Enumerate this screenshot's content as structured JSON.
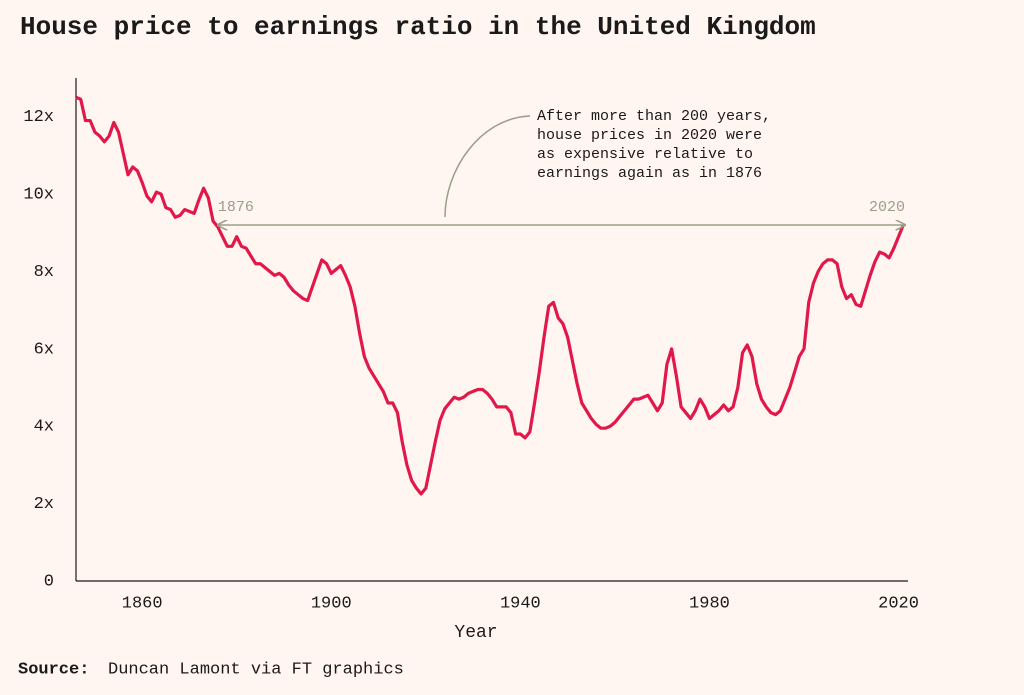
{
  "chart_data": {
    "type": "line",
    "title": "House price to earnings ratio in the United Kingdom",
    "x_label": "Year",
    "source_label": "Source:",
    "source": "Duncan Lamont via FT graphics",
    "annotation": {
      "lines": [
        "After more than 200 years,",
        "house prices in 2020 were",
        "as expensive relative to",
        "earnings again as in 1876"
      ],
      "start_label": "1876",
      "end_label": "2020"
    },
    "xlim": [
      1846,
      2022
    ],
    "xticks": [
      1860,
      1900,
      1940,
      1980,
      2020
    ],
    "ylim": [
      0,
      13
    ],
    "yticks": [
      {
        "value": 0,
        "label": "0"
      },
      {
        "value": 2,
        "label": "2x"
      },
      {
        "value": 4,
        "label": "4x"
      },
      {
        "value": 6,
        "label": "6x"
      },
      {
        "value": 8,
        "label": "8x"
      },
      {
        "value": 10,
        "label": "10x"
      },
      {
        "value": 12,
        "label": "12x"
      }
    ],
    "grid": false,
    "x": [
      1846,
      1847,
      1848,
      1849,
      1850,
      1851,
      1852,
      1853,
      1854,
      1855,
      1856,
      1857,
      1858,
      1859,
      1860,
      1861,
      1862,
      1863,
      1864,
      1865,
      1866,
      1867,
      1868,
      1869,
      1870,
      1871,
      1872,
      1873,
      1874,
      1875,
      1876,
      1877,
      1878,
      1879,
      1880,
      1881,
      1882,
      1883,
      1884,
      1885,
      1886,
      1887,
      1888,
      1889,
      1890,
      1891,
      1892,
      1893,
      1894,
      1895,
      1896,
      1897,
      1898,
      1899,
      1900,
      1901,
      1902,
      1903,
      1904,
      1905,
      1906,
      1907,
      1908,
      1909,
      1910,
      1911,
      1912,
      1913,
      1914,
      1915,
      1916,
      1917,
      1918,
      1919,
      1920,
      1921,
      1922,
      1923,
      1924,
      1925,
      1926,
      1927,
      1928,
      1929,
      1930,
      1931,
      1932,
      1933,
      1934,
      1935,
      1936,
      1937,
      1938,
      1939,
      1940,
      1941,
      1942,
      1943,
      1944,
      1945,
      1946,
      1947,
      1948,
      1949,
      1950,
      1951,
      1952,
      1953,
      1954,
      1955,
      1956,
      1957,
      1958,
      1959,
      1960,
      1961,
      1962,
      1963,
      1964,
      1965,
      1966,
      1967,
      1968,
      1969,
      1970,
      1971,
      1972,
      1973,
      1974,
      1975,
      1976,
      1977,
      1978,
      1979,
      1980,
      1981,
      1982,
      1983,
      1984,
      1985,
      1986,
      1987,
      1988,
      1989,
      1990,
      1991,
      1992,
      1993,
      1994,
      1995,
      1996,
      1997,
      1998,
      1999,
      2000,
      2001,
      2002,
      2003,
      2004,
      2005,
      2006,
      2007,
      2008,
      2009,
      2010,
      2011,
      2012,
      2013,
      2014,
      2015,
      2016,
      2017,
      2018,
      2019,
      2020,
      2021
    ],
    "series": [
      {
        "name": "House price to earnings ratio",
        "color": "#e0194a",
        "values": [
          12.5,
          12.45,
          11.9,
          11.9,
          11.6,
          11.5,
          11.35,
          11.5,
          11.85,
          11.6,
          11.05,
          10.5,
          10.7,
          10.6,
          10.3,
          9.95,
          9.8,
          10.05,
          10.0,
          9.65,
          9.6,
          9.4,
          9.45,
          9.6,
          9.55,
          9.5,
          9.85,
          10.15,
          9.9,
          9.3,
          9.15,
          8.9,
          8.65,
          8.65,
          8.9,
          8.65,
          8.6,
          8.4,
          8.2,
          8.2,
          8.1,
          8.0,
          7.9,
          7.95,
          7.85,
          7.65,
          7.5,
          7.4,
          7.3,
          7.25,
          7.6,
          7.95,
          8.3,
          8.2,
          7.95,
          8.05,
          8.15,
          7.9,
          7.6,
          7.1,
          6.4,
          5.8,
          5.5,
          5.3,
          5.1,
          4.9,
          4.6,
          4.6,
          4.35,
          3.6,
          3.0,
          2.6,
          2.4,
          2.25,
          2.4,
          3.0,
          3.6,
          4.15,
          4.45,
          4.6,
          4.75,
          4.7,
          4.75,
          4.85,
          4.9,
          4.95,
          4.95,
          4.85,
          4.7,
          4.5,
          4.5,
          4.5,
          4.35,
          3.8,
          3.8,
          3.7,
          3.85,
          4.6,
          5.4,
          6.3,
          7.1,
          7.2,
          6.8,
          6.65,
          6.3,
          5.7,
          5.1,
          4.6,
          4.4,
          4.2,
          4.05,
          3.95,
          3.95,
          4.0,
          4.1,
          4.25,
          4.4,
          4.55,
          4.7,
          4.7,
          4.75,
          4.8,
          4.6,
          4.4,
          4.6,
          5.6,
          6.0,
          5.3,
          4.5,
          4.35,
          4.2,
          4.4,
          4.7,
          4.5,
          4.2,
          4.3,
          4.4,
          4.55,
          4.4,
          4.5,
          5.0,
          5.9,
          6.1,
          5.8,
          5.1,
          4.7,
          4.5,
          4.35,
          4.3,
          4.4,
          4.7,
          5.0,
          5.4,
          5.8,
          6.0,
          7.2,
          7.7,
          8.0,
          8.2,
          8.3,
          8.3,
          8.2,
          7.6,
          7.3,
          7.4,
          7.15,
          7.1,
          7.5,
          7.9,
          8.25,
          8.5,
          8.45,
          8.35,
          8.6,
          8.9,
          9.2
        ]
      }
    ]
  }
}
